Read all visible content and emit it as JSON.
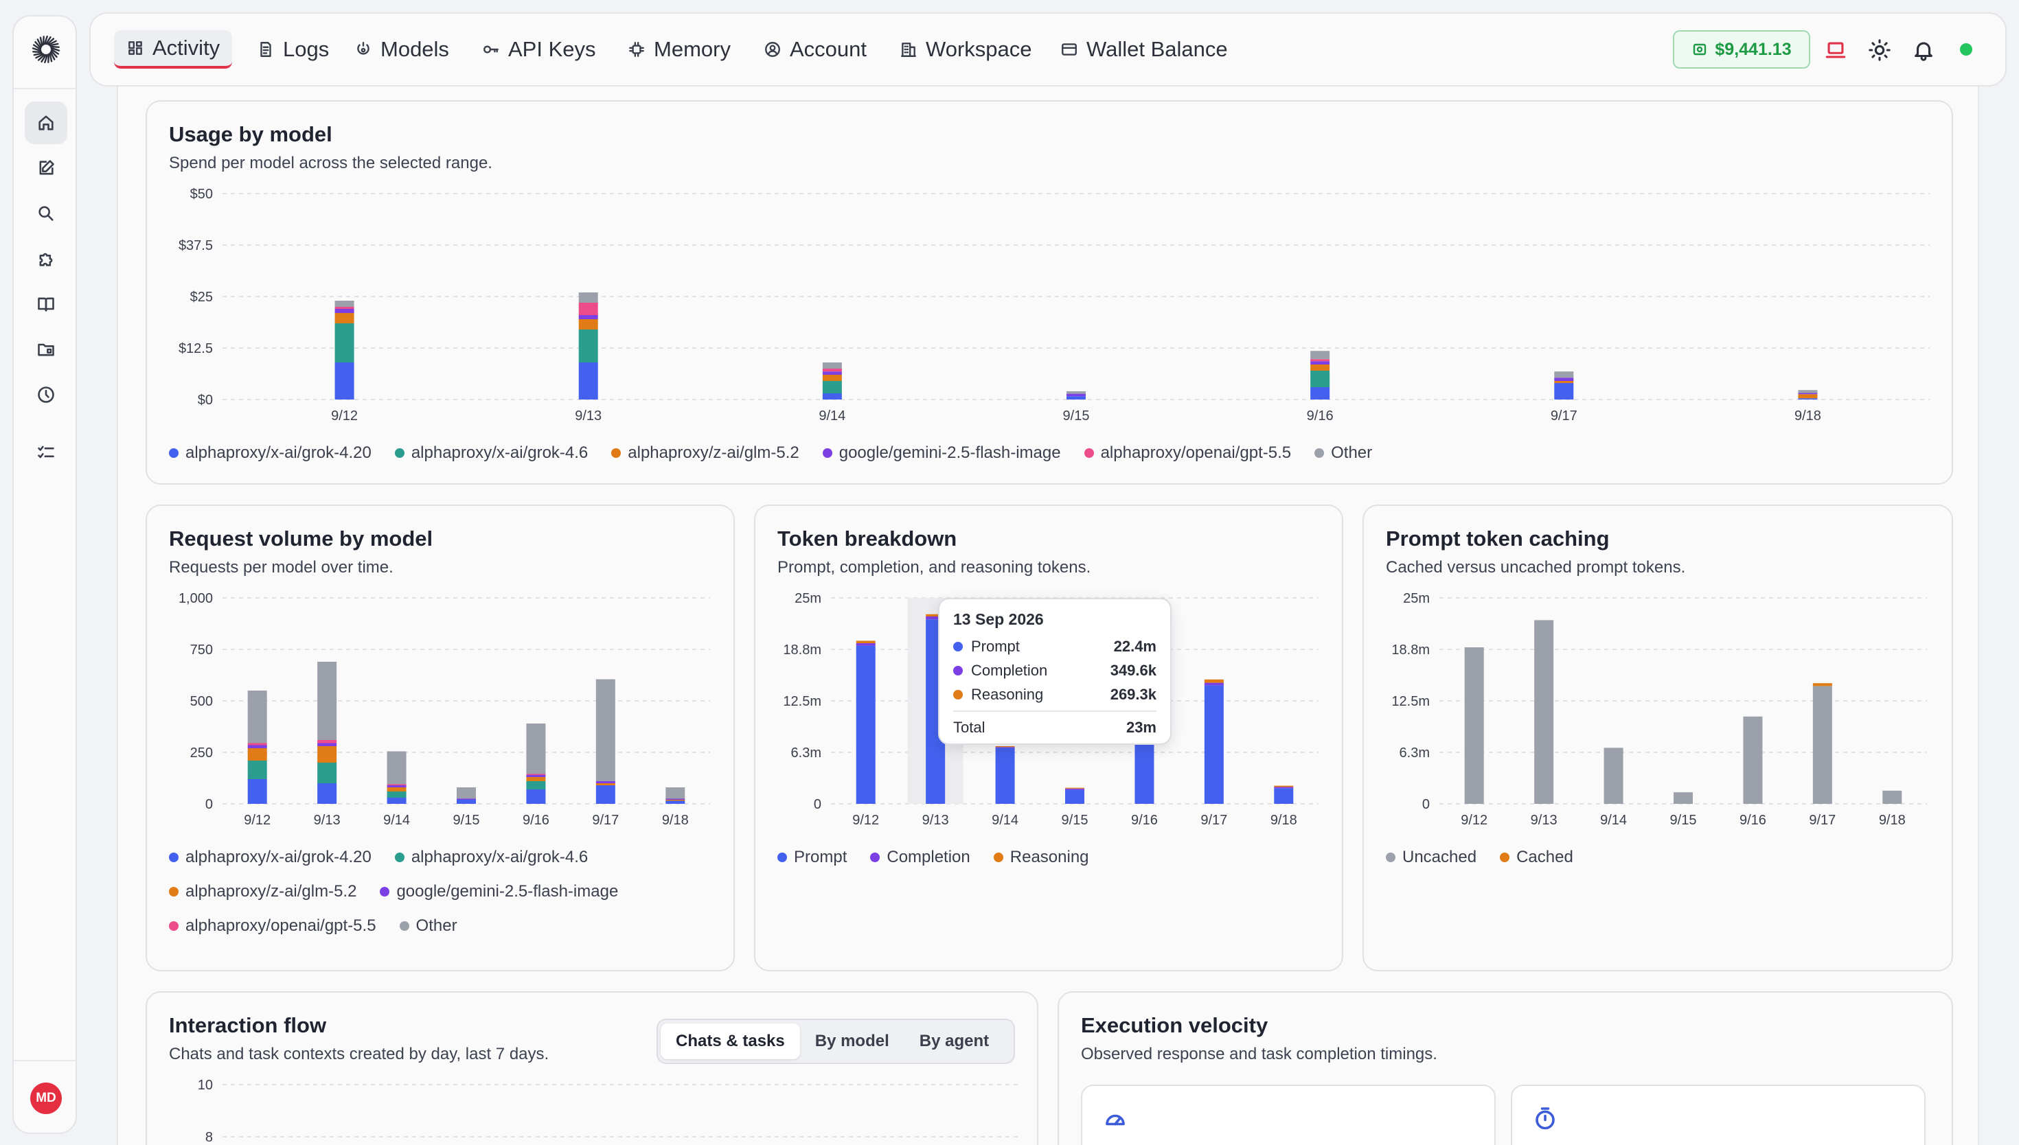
{
  "colors": {
    "grok420": "#4361ee",
    "grok46": "#2a9d8f",
    "glm52": "#e07b16",
    "gemini": "#7b3fe4",
    "gpt55": "#ec4d8a",
    "other": "#9ca0aa",
    "prompt": "#4361ee",
    "completion": "#7b3fe4",
    "reasoning": "#e07b16",
    "uncached": "#9ca0aa",
    "cached": "#e07b16",
    "wallet": "#1d9a44",
    "accent": "#e0334a"
  },
  "sidebar": {
    "items": [
      {
        "icon": "home-icon",
        "active": true
      },
      {
        "icon": "edit-icon"
      },
      {
        "icon": "search-icon"
      },
      {
        "icon": "puzzle-icon"
      },
      {
        "icon": "book-icon"
      },
      {
        "icon": "folder-icon"
      },
      {
        "icon": "clock-icon"
      },
      {
        "icon": "checklist-icon"
      }
    ],
    "avatar_initials": "MD"
  },
  "nav": {
    "tabs": [
      {
        "label": "Activity",
        "icon": "dashboard-icon",
        "active": true
      },
      {
        "label": "Logs",
        "icon": "document-icon"
      },
      {
        "label": "Models",
        "icon": "models-icon"
      },
      {
        "label": "API Keys",
        "icon": "key-icon"
      },
      {
        "label": "Memory",
        "icon": "chip-icon"
      },
      {
        "label": "Account",
        "icon": "user-circle-icon"
      },
      {
        "label": "Workspace",
        "icon": "building-icon"
      },
      {
        "label": "Wallet Balance",
        "icon": "card-icon"
      }
    ],
    "wallet_amount": "$9,441.13"
  },
  "usage": {
    "title": "Usage by model",
    "subtitle": "Spend per model across the selected range.",
    "legend": [
      "alphaproxy/x-ai/grok-4.20",
      "alphaproxy/x-ai/grok-4.6",
      "alphaproxy/z-ai/glm-5.2",
      "google/gemini-2.5-flash-image",
      "alphaproxy/openai/gpt-5.5",
      "Other"
    ]
  },
  "requests": {
    "title": "Request volume by model",
    "subtitle": "Requests per model over time.",
    "legend": [
      "alphaproxy/x-ai/grok-4.20",
      "alphaproxy/x-ai/grok-4.6",
      "alphaproxy/z-ai/glm-5.2",
      "google/gemini-2.5-flash-image",
      "alphaproxy/openai/gpt-5.5",
      "Other"
    ]
  },
  "tokens": {
    "title": "Token breakdown",
    "subtitle": "Prompt, completion, and reasoning tokens.",
    "legend": [
      "Prompt",
      "Completion",
      "Reasoning"
    ],
    "tooltip": {
      "date": "13 Sep 2026",
      "rows": [
        {
          "label": "Prompt",
          "value": "22.4m"
        },
        {
          "label": "Completion",
          "value": "349.6k"
        },
        {
          "label": "Reasoning",
          "value": "269.3k"
        }
      ],
      "total_label": "Total",
      "total_value": "23m"
    }
  },
  "caching": {
    "title": "Prompt token caching",
    "subtitle": "Cached versus uncached prompt tokens.",
    "legend": [
      "Uncached",
      "Cached"
    ]
  },
  "flow": {
    "title": "Interaction flow",
    "subtitle": "Chats and task contexts created by day, last 7 days.",
    "segments": [
      "Chats & tasks",
      "By model",
      "By agent"
    ],
    "active_segment": 0
  },
  "velocity": {
    "title": "Execution velocity",
    "subtitle": "Observed response and task completion timings.",
    "cards": [
      {
        "icon": "gauge-icon"
      },
      {
        "icon": "timer-icon"
      }
    ]
  },
  "chart_data": [
    {
      "type": "bar",
      "stacked": true,
      "title": "Usage by model",
      "categories": [
        "9/12",
        "9/13",
        "9/14",
        "9/15",
        "9/16",
        "9/17",
        "9/18"
      ],
      "ylim": [
        0,
        50
      ],
      "yticks": [
        "$0",
        "$12.5",
        "$25",
        "$37.5",
        "$50"
      ],
      "grid": true,
      "legend_position": "bottom",
      "series": [
        {
          "name": "alphaproxy/x-ai/grok-4.20",
          "values": [
            9,
            9,
            1.5,
            0.8,
            3,
            4,
            0.3
          ]
        },
        {
          "name": "alphaproxy/x-ai/grok-4.6",
          "values": [
            9.5,
            8,
            3,
            0,
            4,
            0,
            0
          ]
        },
        {
          "name": "alphaproxy/z-ai/glm-5.2",
          "values": [
            2.5,
            2.5,
            1.5,
            0,
            1.5,
            0.5,
            1
          ]
        },
        {
          "name": "google/gemini-2.5-flash-image",
          "values": [
            1,
            1,
            0.8,
            0.6,
            0.8,
            0.8,
            0.3
          ]
        },
        {
          "name": "alphaproxy/openai/gpt-5.5",
          "values": [
            0.5,
            3,
            0.7,
            0,
            0.5,
            0,
            0
          ]
        },
        {
          "name": "Other",
          "values": [
            1.5,
            2.5,
            1.5,
            0.6,
            2,
            1.5,
            0.7
          ]
        }
      ]
    },
    {
      "type": "bar",
      "stacked": true,
      "title": "Request volume by model",
      "categories": [
        "9/12",
        "9/13",
        "9/14",
        "9/15",
        "9/16",
        "9/17",
        "9/18"
      ],
      "ylim": [
        0,
        1000
      ],
      "yticks": [
        "0",
        "250",
        "500",
        "750",
        "1,000"
      ],
      "grid": true,
      "legend_position": "bottom",
      "series": [
        {
          "name": "alphaproxy/x-ai/grok-4.20",
          "values": [
            120,
            100,
            30,
            20,
            70,
            90,
            15
          ]
        },
        {
          "name": "alphaproxy/x-ai/grok-4.6",
          "values": [
            90,
            100,
            30,
            0,
            40,
            0,
            0
          ]
        },
        {
          "name": "alphaproxy/z-ai/glm-5.2",
          "values": [
            60,
            80,
            20,
            0,
            20,
            10,
            5
          ]
        },
        {
          "name": "google/gemini-2.5-flash-image",
          "values": [
            15,
            15,
            10,
            5,
            10,
            10,
            5
          ]
        },
        {
          "name": "alphaproxy/openai/gpt-5.5",
          "values": [
            10,
            15,
            5,
            0,
            5,
            0,
            0
          ]
        },
        {
          "name": "Other",
          "values": [
            255,
            380,
            160,
            55,
            245,
            495,
            55
          ]
        }
      ]
    },
    {
      "type": "bar",
      "stacked": true,
      "title": "Token breakdown",
      "categories": [
        "9/12",
        "9/13",
        "9/14",
        "9/15",
        "9/16",
        "9/17",
        "9/18"
      ],
      "ylim": [
        0,
        25
      ],
      "yunit": "m",
      "yticks": [
        "0",
        "6.3m",
        "12.5m",
        "18.8m",
        "25m"
      ],
      "grid": true,
      "legend_position": "bottom",
      "highlight_category": "9/13",
      "series": [
        {
          "name": "Prompt",
          "values": [
            19.2,
            22.4,
            6.8,
            1.7,
            10.2,
            14.4,
            1.9
          ]
        },
        {
          "name": "Completion",
          "values": [
            0.3,
            0.35,
            0.1,
            0.15,
            0.2,
            0.3,
            0.15
          ]
        },
        {
          "name": "Reasoning",
          "values": [
            0.3,
            0.27,
            0.1,
            0.1,
            0.2,
            0.4,
            0.15
          ]
        }
      ]
    },
    {
      "type": "bar",
      "stacked": true,
      "title": "Prompt token caching",
      "categories": [
        "9/12",
        "9/13",
        "9/14",
        "9/15",
        "9/16",
        "9/17",
        "9/18"
      ],
      "ylim": [
        0,
        25
      ],
      "yunit": "m",
      "yticks": [
        "0",
        "6.3m",
        "12.5m",
        "18.8m",
        "25m"
      ],
      "grid": true,
      "legend_position": "bottom",
      "series": [
        {
          "name": "Uncached",
          "values": [
            19,
            22.3,
            6.8,
            1.4,
            10.6,
            14.3,
            1.6
          ]
        },
        {
          "name": "Cached",
          "values": [
            0,
            0,
            0,
            0,
            0,
            0.35,
            0
          ]
        }
      ]
    },
    {
      "type": "line",
      "title": "Interaction flow",
      "ylim": [
        8,
        10
      ],
      "yticks": [
        "10",
        "8"
      ],
      "grid": true
    }
  ]
}
